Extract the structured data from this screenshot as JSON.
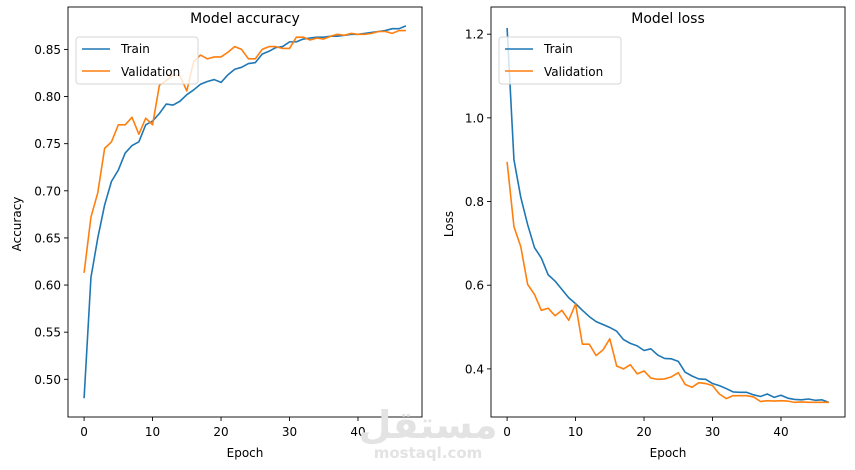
{
  "watermark": {
    "arabic": "مستقل",
    "latin": "mostaql.com"
  },
  "chart_data": [
    {
      "type": "line",
      "title": "Model accuracy",
      "xlabel": "Epoch",
      "ylabel": "Accuracy",
      "xlim": [
        -2.35,
        49.35
      ],
      "ylim": [
        0.46,
        0.895
      ],
      "xticks": [
        0,
        10,
        20,
        30,
        40
      ],
      "yticks": [
        0.5,
        0.55,
        0.6,
        0.65,
        0.7,
        0.75,
        0.8,
        0.85
      ],
      "ytick_labels": [
        "0.50",
        "0.55",
        "0.60",
        "0.65",
        "0.70",
        "0.75",
        "0.80",
        "0.85"
      ],
      "legend": "upper left",
      "grid": false,
      "series": [
        {
          "name": "Train",
          "color": "#1f77b4",
          "values": [
            0.48,
            0.608,
            0.65,
            0.685,
            0.71,
            0.722,
            0.74,
            0.748,
            0.752,
            0.77,
            0.774,
            0.782,
            0.792,
            0.791,
            0.795,
            0.802,
            0.807,
            0.813,
            0.816,
            0.818,
            0.815,
            0.823,
            0.829,
            0.831,
            0.835,
            0.836,
            0.845,
            0.848,
            0.852,
            0.853,
            0.858,
            0.858,
            0.861,
            0.862,
            0.863,
            0.863,
            0.864,
            0.864,
            0.865,
            0.866,
            0.866,
            0.867,
            0.868,
            0.869,
            0.87,
            0.872,
            0.872,
            0.875
          ]
        },
        {
          "name": "Validation",
          "color": "#ff7f0e",
          "values": [
            0.613,
            0.672,
            0.698,
            0.745,
            0.752,
            0.77,
            0.77,
            0.778,
            0.76,
            0.777,
            0.77,
            0.812,
            0.817,
            0.823,
            0.822,
            0.806,
            0.837,
            0.844,
            0.84,
            0.842,
            0.842,
            0.847,
            0.853,
            0.85,
            0.84,
            0.84,
            0.85,
            0.853,
            0.853,
            0.851,
            0.851,
            0.863,
            0.863,
            0.86,
            0.862,
            0.861,
            0.864,
            0.866,
            0.865,
            0.867,
            0.866,
            0.866,
            0.867,
            0.869,
            0.869,
            0.867,
            0.87,
            0.87
          ]
        }
      ]
    },
    {
      "type": "line",
      "title": "Model loss",
      "xlabel": "Epoch",
      "ylabel": "Loss",
      "xlim": [
        -2.35,
        49.35
      ],
      "ylim": [
        0.285,
        1.265
      ],
      "xticks": [
        0,
        10,
        20,
        30,
        40
      ],
      "yticks": [
        0.4,
        0.6,
        0.8,
        1.0,
        1.2
      ],
      "ytick_labels": [
        "0.4",
        "0.6",
        "0.8",
        "1.0",
        "1.2"
      ],
      "legend": "upper left",
      "grid": false,
      "series": [
        {
          "name": "Train",
          "color": "#1f77b4",
          "values": [
            1.215,
            0.9,
            0.81,
            0.745,
            0.69,
            0.665,
            0.625,
            0.61,
            0.59,
            0.57,
            0.556,
            0.54,
            0.525,
            0.513,
            0.506,
            0.499,
            0.49,
            0.47,
            0.461,
            0.455,
            0.444,
            0.448,
            0.433,
            0.425,
            0.424,
            0.418,
            0.392,
            0.383,
            0.376,
            0.375,
            0.365,
            0.36,
            0.353,
            0.345,
            0.344,
            0.344,
            0.338,
            0.334,
            0.34,
            0.332,
            0.337,
            0.33,
            0.327,
            0.326,
            0.328,
            0.325,
            0.326,
            0.32
          ]
        },
        {
          "name": "Validation",
          "color": "#ff7f0e",
          "values": [
            0.895,
            0.74,
            0.692,
            0.602,
            0.578,
            0.54,
            0.545,
            0.527,
            0.54,
            0.516,
            0.555,
            0.459,
            0.459,
            0.432,
            0.445,
            0.472,
            0.407,
            0.4,
            0.41,
            0.388,
            0.395,
            0.378,
            0.375,
            0.376,
            0.381,
            0.391,
            0.363,
            0.356,
            0.367,
            0.365,
            0.36,
            0.34,
            0.329,
            0.336,
            0.336,
            0.336,
            0.333,
            0.322,
            0.324,
            0.323,
            0.324,
            0.323,
            0.32,
            0.321,
            0.32,
            0.32,
            0.32,
            0.32
          ]
        }
      ]
    }
  ]
}
